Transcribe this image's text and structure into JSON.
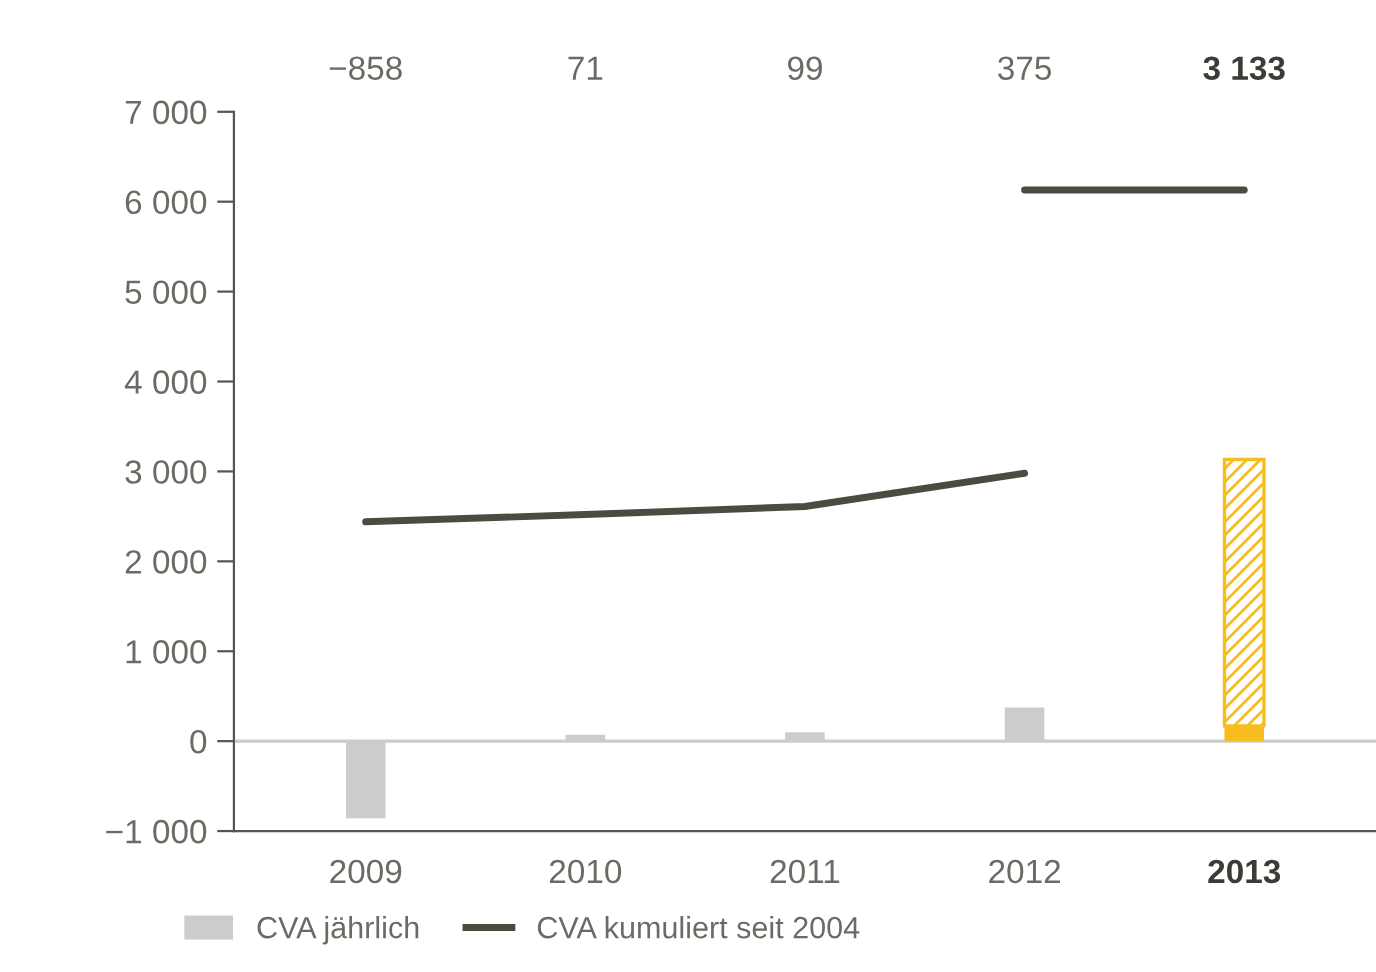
{
  "chart_data": {
    "type": "bar",
    "categories": [
      "2009",
      "2010",
      "2011",
      "2012",
      "2013"
    ],
    "stacked": true,
    "series": [
      {
        "name": "CVA jährlich",
        "color": "#cccccc",
        "colors": [
          "#cccccc",
          "#cccccc",
          "#cccccc",
          "#cccccc",
          "#f7bd1f"
        ],
        "values": [
          -858,
          71,
          99,
          375,
          170
        ]
      },
      {
        "color": "#f7bd1f",
        "values": [
          null,
          null,
          null,
          null,
          2963
        ]
      },
      {
        "name": "CVA kumuliert seit 2004",
        "type": "line",
        "color": "#474d40",
        "values": [
          2440,
          2520,
          2610,
          2980,
          null
        ]
      },
      {
        "type": "line",
        "color": "#474d40",
        "values": [
          null,
          null,
          null,
          6130,
          6130
        ]
      }
    ],
    "annotations": [
      "−858",
      "71",
      "99",
      "375",
      "3 133"
    ],
    "ylim": [
      -1000,
      7000
    ],
    "yticks": [
      {
        "value": -1000,
        "label": "−1 000"
      },
      0,
      {
        "value": 1000,
        "label": "1 000"
      },
      {
        "value": 2000,
        "label": "2 000"
      },
      {
        "value": 3000,
        "label": "3 000"
      },
      {
        "value": 4000,
        "label": "4 000"
      },
      {
        "value": 5000,
        "label": "5 000"
      },
      {
        "value": 6000,
        "label": "6 000"
      },
      {
        "value": 7000,
        "label": "7 000"
      }
    ],
    "ref_lines": [
      {
        "axis": "y",
        "value": 0,
        "color": "#cccccc"
      }
    ],
    "grid": false,
    "legend": "bottom left"
  }
}
